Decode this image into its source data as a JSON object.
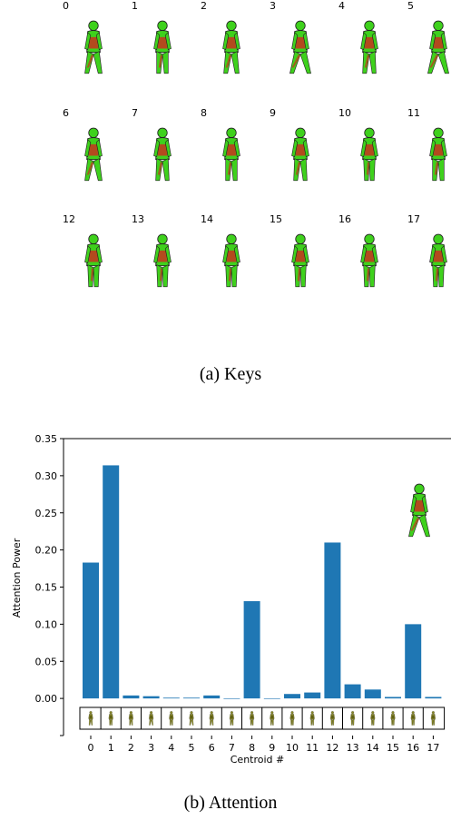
{
  "keys": {
    "caption": "(a) Keys",
    "labels": [
      "0",
      "1",
      "2",
      "3",
      "4",
      "5",
      "6",
      "7",
      "8",
      "9",
      "10",
      "11",
      "12",
      "13",
      "14",
      "15",
      "16",
      "17"
    ]
  },
  "colors": {
    "bar": "#1f77b4",
    "figure_green": "#3ed11c",
    "figure_red": "#c8321e",
    "thumb": "#8a8a2a"
  },
  "icons": {
    "figure": "walking-person-icon"
  },
  "chart_data": {
    "type": "bar",
    "caption": "(b) Attention",
    "xlabel": "Centroid #",
    "ylabel": "Attention Power",
    "ylim": [
      -0.05,
      0.35
    ],
    "yticks": [
      "0.00",
      "0.05",
      "0.10",
      "0.15",
      "0.20",
      "0.25",
      "0.30",
      "0.35"
    ],
    "ytick_values": [
      0.0,
      0.05,
      0.1,
      0.15,
      0.2,
      0.25,
      0.3,
      0.35
    ],
    "categories": [
      "0",
      "1",
      "2",
      "3",
      "4",
      "5",
      "6",
      "7",
      "8",
      "9",
      "10",
      "11",
      "12",
      "13",
      "14",
      "15",
      "16",
      "17"
    ],
    "values": [
      0.183,
      0.314,
      0.004,
      0.003,
      0.001,
      0.001,
      0.004,
      0.0,
      0.131,
      0.0,
      0.006,
      0.008,
      0.21,
      0.019,
      0.012,
      0.002,
      0.1,
      0.002
    ],
    "inset_icon": "walking-person-icon"
  }
}
